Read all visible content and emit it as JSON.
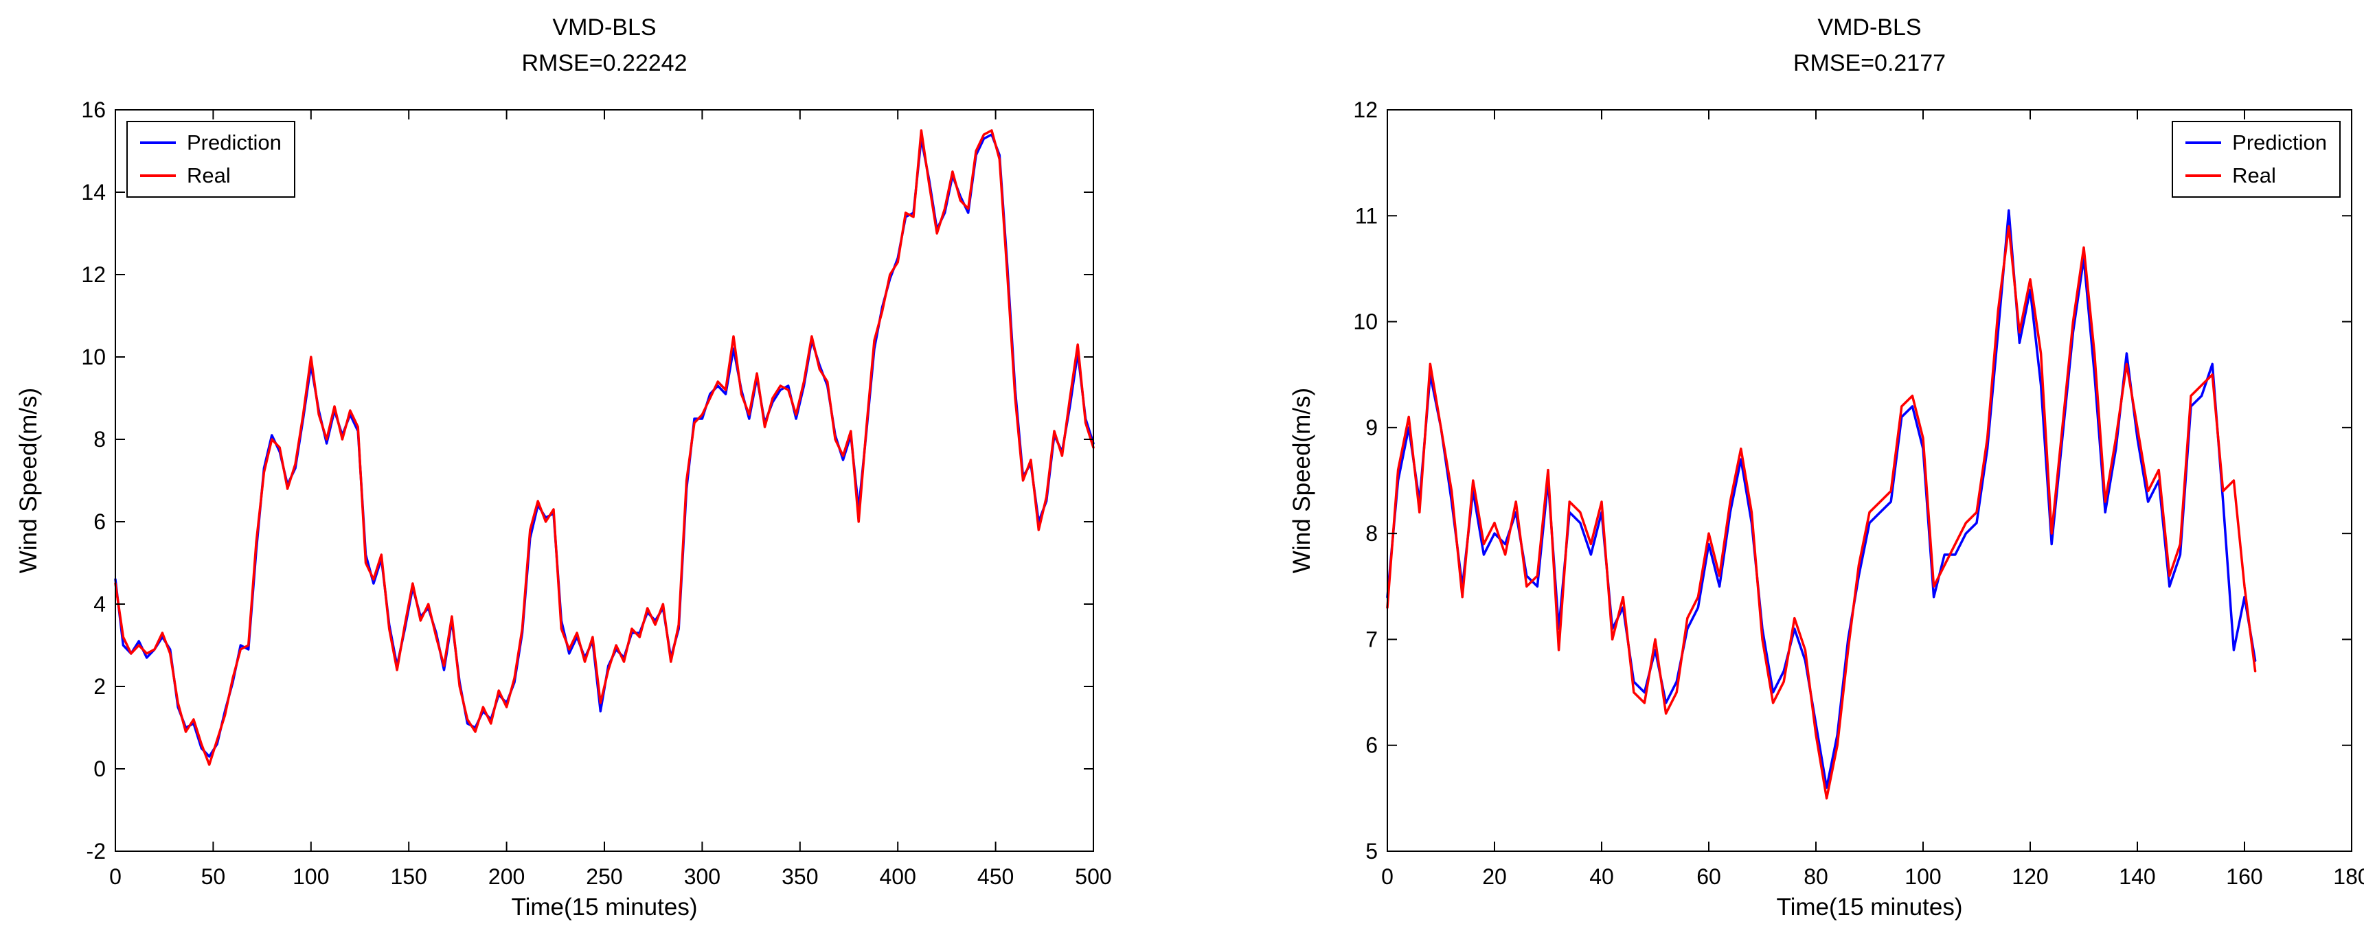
{
  "figure": {
    "background": "#ffffff",
    "axis_color": "#000000",
    "text_color": "#000000"
  },
  "chart_data": [
    {
      "type": "line",
      "title": "VMD-BLS",
      "subtitle": "RMSE=0.22242",
      "xlabel": "Time(15 minutes)",
      "ylabel": "Wind Speed(m/s)",
      "xlim": [
        0,
        500
      ],
      "ylim": [
        -2,
        16
      ],
      "xticks": [
        0,
        50,
        100,
        150,
        200,
        250,
        300,
        350,
        400,
        450,
        500
      ],
      "yticks": [
        -2,
        0,
        2,
        4,
        6,
        8,
        10,
        12,
        14,
        16
      ],
      "grid": false,
      "legend_position": "top-left",
      "x_start": 0,
      "x_step": 4,
      "series": [
        {
          "name": "Prediction",
          "color": "#0000ff",
          "values": [
            4.6,
            3.0,
            2.8,
            3.1,
            2.7,
            2.9,
            3.2,
            2.9,
            1.5,
            1.0,
            1.1,
            0.5,
            0.3,
            0.6,
            1.4,
            2.1,
            3.0,
            2.9,
            5.3,
            7.3,
            8.1,
            7.7,
            6.9,
            7.3,
            8.5,
            9.8,
            8.7,
            7.9,
            8.7,
            8.1,
            8.6,
            8.2,
            5.2,
            4.5,
            5.1,
            3.5,
            2.5,
            3.4,
            4.4,
            3.7,
            3.9,
            3.3,
            2.4,
            3.6,
            2.1,
            1.1,
            1.0,
            1.4,
            1.2,
            1.8,
            1.6,
            2.1,
            3.3,
            5.6,
            6.4,
            6.1,
            6.2,
            3.6,
            2.8,
            3.2,
            2.7,
            3.1,
            1.4,
            2.5,
            2.9,
            2.7,
            3.3,
            3.3,
            3.8,
            3.6,
            3.9,
            2.7,
            3.4,
            6.8,
            8.5,
            8.5,
            9.1,
            9.3,
            9.1,
            10.2,
            9.2,
            8.5,
            9.5,
            8.4,
            8.9,
            9.2,
            9.3,
            8.5,
            9.3,
            10.4,
            9.8,
            9.3,
            8.1,
            7.5,
            8.1,
            6.3,
            8.2,
            10.2,
            11.2,
            11.9,
            12.4,
            13.4,
            13.5,
            15.3,
            14.3,
            13.1,
            13.5,
            14.4,
            13.9,
            13.5,
            14.9,
            15.3,
            15.4,
            14.9,
            12.2,
            9.2,
            7.1,
            7.4,
            6.0,
            6.5,
            8.1,
            7.7,
            8.8,
            10.1,
            8.5,
            7.9
          ]
        },
        {
          "name": "Real",
          "color": "#ff0000",
          "values": [
            4.5,
            3.2,
            2.8,
            3.0,
            2.8,
            2.9,
            3.3,
            2.8,
            1.6,
            0.9,
            1.2,
            0.6,
            0.1,
            0.7,
            1.3,
            2.2,
            2.9,
            3.0,
            5.5,
            7.2,
            8.0,
            7.8,
            6.8,
            7.4,
            8.6,
            10.0,
            8.6,
            8.0,
            8.8,
            8.0,
            8.7,
            8.3,
            5.0,
            4.6,
            5.2,
            3.4,
            2.4,
            3.5,
            4.5,
            3.6,
            4.0,
            3.2,
            2.5,
            3.7,
            2.0,
            1.2,
            0.9,
            1.5,
            1.1,
            1.9,
            1.5,
            2.2,
            3.4,
            5.8,
            6.5,
            6.0,
            6.3,
            3.4,
            2.9,
            3.3,
            2.6,
            3.2,
            1.6,
            2.4,
            3.0,
            2.6,
            3.4,
            3.2,
            3.9,
            3.5,
            4.0,
            2.6,
            3.5,
            7.0,
            8.4,
            8.6,
            9.0,
            9.4,
            9.2,
            10.5,
            9.1,
            8.6,
            9.6,
            8.3,
            9.0,
            9.3,
            9.2,
            8.6,
            9.4,
            10.5,
            9.7,
            9.4,
            8.0,
            7.6,
            8.2,
            6.0,
            8.3,
            10.4,
            11.1,
            12.0,
            12.3,
            13.5,
            13.4,
            15.5,
            14.2,
            13.0,
            13.6,
            14.5,
            13.8,
            13.6,
            15.0,
            15.4,
            15.5,
            14.8,
            12.0,
            9.0,
            7.0,
            7.5,
            5.8,
            6.6,
            8.2,
            7.6,
            9.0,
            10.3,
            8.4,
            7.8
          ]
        }
      ]
    },
    {
      "type": "line",
      "title": "VMD-BLS",
      "subtitle": "RMSE=0.2177",
      "xlabel": "Time(15 minutes)",
      "ylabel": "Wind Speed(m/s)",
      "xlim": [
        0,
        180
      ],
      "ylim": [
        5,
        12
      ],
      "xticks": [
        0,
        20,
        40,
        60,
        80,
        100,
        120,
        140,
        160,
        180
      ],
      "yticks": [
        5,
        6,
        7,
        8,
        9,
        10,
        11,
        12
      ],
      "grid": false,
      "legend_position": "top-right",
      "x_start": 0,
      "x_step": 2,
      "series": [
        {
          "name": "Prediction",
          "color": "#0000ff",
          "values": [
            7.4,
            8.5,
            9.0,
            8.3,
            9.5,
            9.0,
            8.3,
            7.5,
            8.4,
            7.8,
            8.0,
            7.9,
            8.2,
            7.6,
            7.5,
            8.5,
            7.1,
            8.2,
            8.1,
            7.8,
            8.2,
            7.1,
            7.3,
            6.6,
            6.5,
            6.9,
            6.4,
            6.6,
            7.1,
            7.3,
            7.9,
            7.5,
            8.2,
            8.7,
            8.1,
            7.1,
            6.5,
            6.7,
            7.1,
            6.8,
            6.2,
            5.6,
            6.1,
            7.0,
            7.6,
            8.1,
            8.2,
            8.3,
            9.1,
            9.2,
            8.8,
            7.4,
            7.8,
            7.8,
            8.0,
            8.1,
            8.8,
            9.9,
            11.05,
            9.8,
            10.3,
            9.4,
            7.9,
            8.9,
            9.9,
            10.6,
            9.5,
            8.2,
            8.8,
            9.7,
            8.9,
            8.3,
            8.5,
            7.5,
            7.8,
            9.2,
            9.3,
            9.6,
            8.3,
            6.9,
            7.4,
            6.8
          ]
        },
        {
          "name": "Real",
          "color": "#ff0000",
          "values": [
            7.3,
            8.6,
            9.1,
            8.2,
            9.6,
            9.0,
            8.4,
            7.4,
            8.5,
            7.9,
            8.1,
            7.8,
            8.3,
            7.5,
            7.6,
            8.6,
            6.9,
            8.3,
            8.2,
            7.9,
            8.3,
            7.0,
            7.4,
            6.5,
            6.4,
            7.0,
            6.3,
            6.5,
            7.2,
            7.4,
            8.0,
            7.6,
            8.3,
            8.8,
            8.2,
            7.0,
            6.4,
            6.6,
            7.2,
            6.9,
            6.1,
            5.5,
            6.0,
            6.9,
            7.7,
            8.2,
            8.3,
            8.4,
            9.2,
            9.3,
            8.9,
            7.5,
            7.7,
            7.9,
            8.1,
            8.2,
            8.9,
            10.1,
            10.9,
            9.9,
            10.4,
            9.7,
            8.0,
            9.0,
            10.0,
            10.7,
            9.7,
            8.3,
            8.9,
            9.6,
            9.0,
            8.4,
            8.6,
            7.6,
            7.9,
            9.3,
            9.4,
            9.5,
            8.4,
            8.5,
            7.5,
            6.7
          ]
        }
      ]
    }
  ]
}
